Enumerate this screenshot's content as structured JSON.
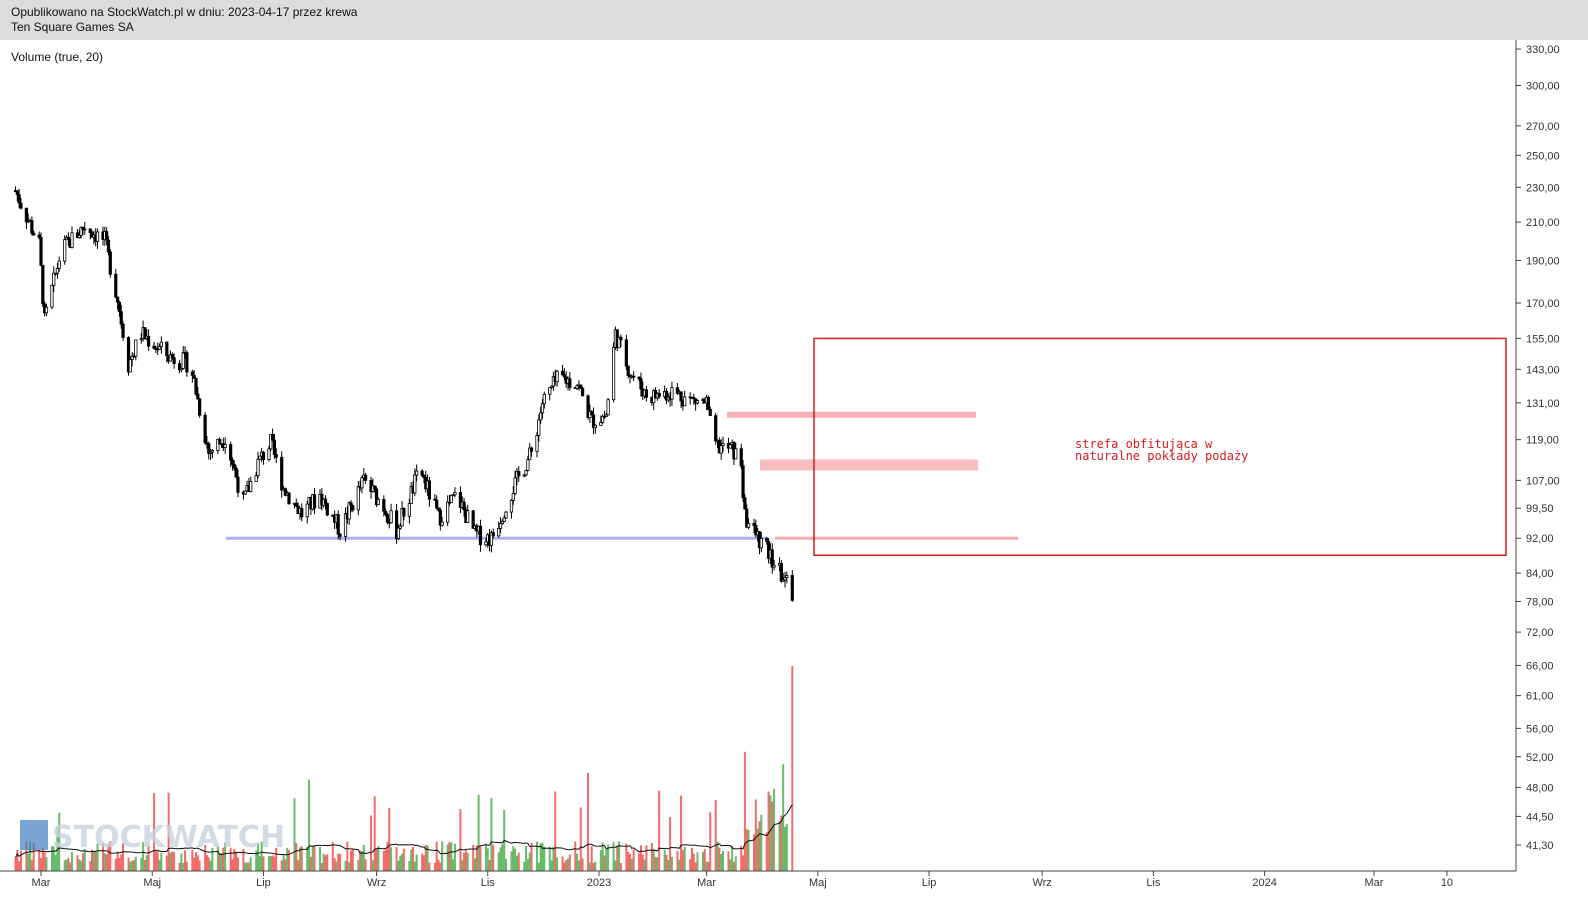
{
  "header": {
    "published": "Opublikowano na StockWatch.pl w dniu: 2023-04-17 przez krewa",
    "instrument": "Ten Square Games SA"
  },
  "indicator_label": "Volume (true, 20)",
  "watermark": "STOCKWATCH",
  "annotation": {
    "line1": "strefa obfitująca w",
    "line2": "naturalne pokłady podaży"
  },
  "colors": {
    "candle": "#000000",
    "volume_up": "#4caf50",
    "volume_down": "#ef5350",
    "support_line": "#aab0f5",
    "supply_zone": "#f7a8ab",
    "box": "#d71c22"
  },
  "chart_data": {
    "type": "candlestick",
    "title": "Ten Square Games SA",
    "y_scale": "log",
    "ylim": [
      38,
      345
    ],
    "y_ticks": [
      "330,00",
      "300,00",
      "270,00",
      "250,00",
      "230,00",
      "210,00",
      "190,00",
      "170,00",
      "155,00",
      "143,00",
      "131,00",
      "119,00",
      "107,00",
      "99,50",
      "92,00",
      "84,00",
      "78,00",
      "72,00",
      "66,00",
      "61,00",
      "56,00",
      "52,00",
      "48,00",
      "44,50",
      "41,30"
    ],
    "x_ticks": [
      "Mar",
      "Maj",
      "Lip",
      "Wrz",
      "Lis",
      "2023",
      "Mar",
      "Maj",
      "Lip",
      "Wrz",
      "Lis",
      "2024",
      "Mar",
      "10"
    ],
    "price_path": [
      {
        "date": "2022-02-15",
        "close": 228
      },
      {
        "date": "2022-02-28",
        "close": 198
      },
      {
        "date": "2022-03-03",
        "close": 162
      },
      {
        "date": "2022-03-12",
        "close": 195
      },
      {
        "date": "2022-03-25",
        "close": 208
      },
      {
        "date": "2022-04-05",
        "close": 200
      },
      {
        "date": "2022-04-12",
        "close": 172
      },
      {
        "date": "2022-04-18",
        "close": 145
      },
      {
        "date": "2022-04-25",
        "close": 157
      },
      {
        "date": "2022-05-10",
        "close": 148
      },
      {
        "date": "2022-05-22",
        "close": 145
      },
      {
        "date": "2022-06-01",
        "close": 115
      },
      {
        "date": "2022-06-10",
        "close": 120
      },
      {
        "date": "2022-06-20",
        "close": 101
      },
      {
        "date": "2022-06-28",
        "close": 112
      },
      {
        "date": "2022-07-05",
        "close": 118
      },
      {
        "date": "2022-07-12",
        "close": 105
      },
      {
        "date": "2022-07-22",
        "close": 98
      },
      {
        "date": "2022-08-01",
        "close": 103
      },
      {
        "date": "2022-08-12",
        "close": 94
      },
      {
        "date": "2022-08-25",
        "close": 107
      },
      {
        "date": "2022-09-05",
        "close": 100
      },
      {
        "date": "2022-09-12",
        "close": 94
      },
      {
        "date": "2022-09-25",
        "close": 110
      },
      {
        "date": "2022-10-05",
        "close": 97
      },
      {
        "date": "2022-10-15",
        "close": 103
      },
      {
        "date": "2022-10-25",
        "close": 93
      },
      {
        "date": "2022-11-03",
        "close": 92
      },
      {
        "date": "2022-11-15",
        "close": 105
      },
      {
        "date": "2022-11-25",
        "close": 115
      },
      {
        "date": "2022-12-01",
        "close": 131
      },
      {
        "date": "2022-12-10",
        "close": 140
      },
      {
        "date": "2022-12-20",
        "close": 138
      },
      {
        "date": "2022-12-28",
        "close": 125
      },
      {
        "date": "2023-01-05",
        "close": 127
      },
      {
        "date": "2023-01-10",
        "close": 157
      },
      {
        "date": "2023-01-18",
        "close": 142
      },
      {
        "date": "2023-01-28",
        "close": 133
      },
      {
        "date": "2023-02-10",
        "close": 135
      },
      {
        "date": "2023-02-20",
        "close": 132
      },
      {
        "date": "2023-03-01",
        "close": 131
      },
      {
        "date": "2023-03-05",
        "close": 117
      },
      {
        "date": "2023-03-15",
        "close": 116
      },
      {
        "date": "2023-03-20",
        "close": 112
      },
      {
        "date": "2023-03-22",
        "close": 97
      },
      {
        "date": "2023-04-03",
        "close": 89
      },
      {
        "date": "2023-04-12",
        "close": 83
      },
      {
        "date": "2023-04-17",
        "close": 80
      }
    ],
    "support_level": 92,
    "supply_zones": [
      {
        "price_low": 126,
        "price_high": 128
      },
      {
        "price_low": 111,
        "price_high": 113
      },
      {
        "price": 92
      }
    ],
    "supply_box": {
      "price_top": 155,
      "price_bottom": 88
    }
  }
}
